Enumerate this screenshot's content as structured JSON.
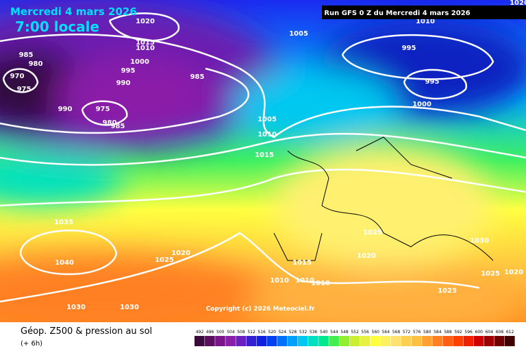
{
  "header": {
    "date": "Mercredi 4 mars 2026",
    "time": "7:00 locale",
    "run": "Run GFS 0 Z du Mercredi 4 mars 2026"
  },
  "isobar_labels": [
    1020,
    1020,
    1015,
    1010,
    985,
    980,
    1000,
    995,
    970,
    985,
    990,
    975,
    990,
    975,
    980,
    985,
    1005,
    1010,
    995,
    995,
    1000,
    1005,
    1010,
    1015,
    1035,
    1025,
    1030,
    1020,
    1040,
    1025,
    1020,
    1015,
    1010,
    1010,
    1010,
    1025,
    1020,
    1025,
    1030,
    1030
  ],
  "copyright": "Copyright (c) 2026 Meteociel.fr",
  "legend": {
    "title": "Géop. Z500 & pression au sol",
    "step": "(+ 6h)",
    "colorbar": {
      "values": [
        492,
        496,
        500,
        504,
        508,
        512,
        516,
        520,
        524,
        528,
        532,
        536,
        540,
        544,
        548,
        552,
        556,
        560,
        564,
        568,
        572,
        576,
        580,
        584,
        588,
        592,
        596,
        600,
        604,
        608,
        612
      ],
      "colors": [
        "#3a0a3a",
        "#5a0f5e",
        "#7a168a",
        "#8a1fa8",
        "#6a1fc0",
        "#3320d0",
        "#1020e0",
        "#0040f0",
        "#0070ff",
        "#00a0ff",
        "#00c8f0",
        "#00e0c0",
        "#00e890",
        "#40f050",
        "#90f030",
        "#c8f030",
        "#e8f040",
        "#ffff40",
        "#fff060",
        "#ffe070",
        "#ffd050",
        "#ffc040",
        "#ffa030",
        "#ff8020",
        "#ff6010",
        "#ff4000",
        "#f02000",
        "#d00000",
        "#a00000",
        "#700000",
        "#400000"
      ]
    }
  }
}
